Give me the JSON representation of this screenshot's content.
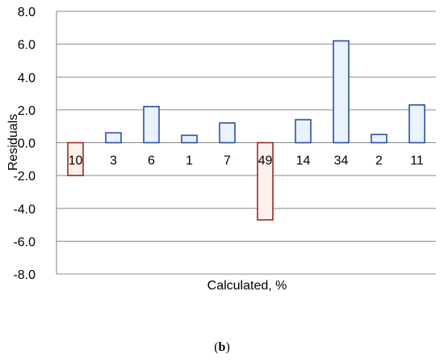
{
  "panel_label": "b",
  "chart_data": {
    "type": "bar",
    "title": "",
    "xlabel": "Calculated, %",
    "ylabel": "Residuals",
    "ylim": [
      -8.0,
      8.0
    ],
    "yticks": [
      -8.0,
      -6.0,
      -4.0,
      -2.0,
      0.0,
      2.0,
      4.0,
      6.0,
      8.0
    ],
    "ytick_labels": [
      "-8.0",
      "-6.0",
      "-4.0",
      "-2.0",
      "0.0",
      "2.0",
      "4.0",
      "6.0",
      "8.0"
    ],
    "grid": true,
    "legend": "none",
    "categories": [
      "10",
      "3",
      "6",
      "1",
      "7",
      "49",
      "14",
      "34",
      "2",
      "11"
    ],
    "values": [
      -2.0,
      0.6,
      2.2,
      0.45,
      1.2,
      -4.7,
      1.4,
      6.2,
      0.5,
      2.3
    ],
    "colors": {
      "positive_fill": "#eaf2ff",
      "positive_stroke": "#2b4fa3",
      "negative_fill": "#fff1ec",
      "negative_stroke": "#9b2a1c",
      "gridline": "#8c8c8c",
      "axis": "#7f7f7f"
    }
  }
}
